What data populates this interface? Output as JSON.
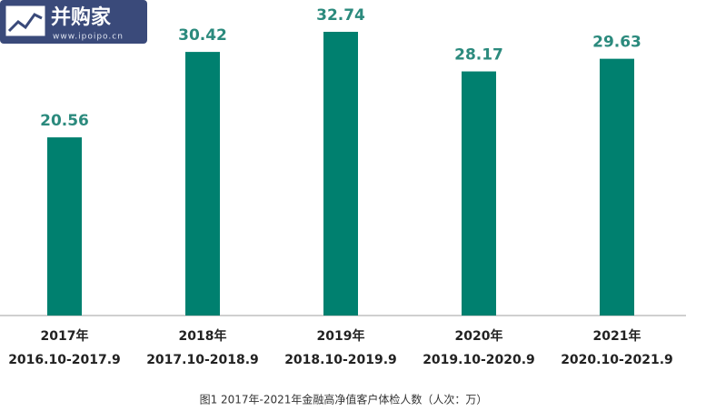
{
  "chart_data": {
    "type": "bar",
    "caption": "图1  2017年-2021年金融高净值客户体检人数（人次：万）",
    "categories": [
      [
        "2017年",
        "2016.10-2017.9"
      ],
      [
        "2018年",
        "2017.10-2018.9"
      ],
      [
        "2019年",
        "2018.10-2019.9"
      ],
      [
        "2020年",
        "2019.10-2020.9"
      ],
      [
        "2021年",
        "2020.10-2021.9"
      ]
    ],
    "values": [
      20.56,
      30.42,
      32.74,
      28.17,
      29.63
    ],
    "color": "#00806f",
    "label_color": "#2b8a7d"
  },
  "watermark": {
    "name": "并购家",
    "url": "www.ipoipo.cn"
  }
}
